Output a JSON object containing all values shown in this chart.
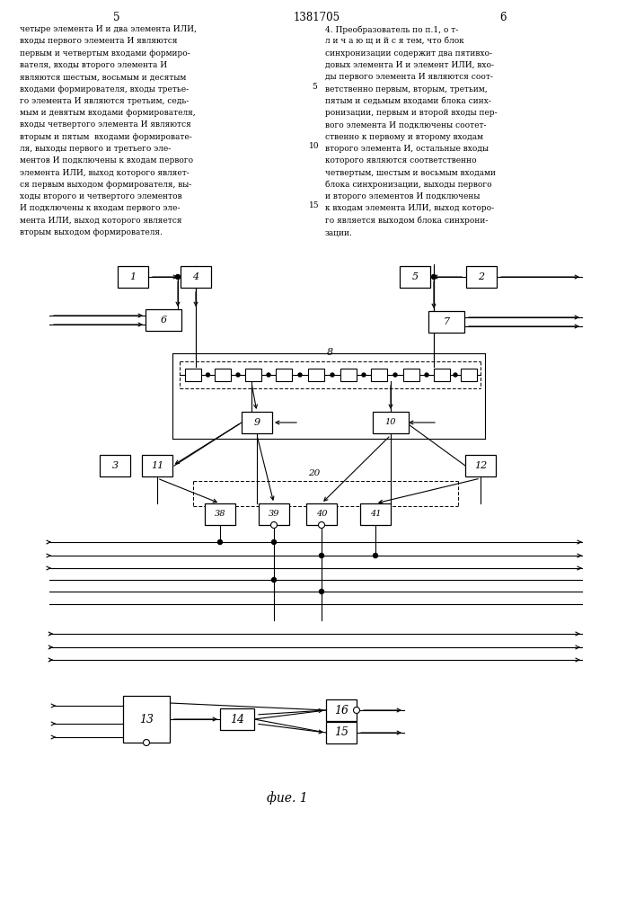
{
  "title": "1381705",
  "page_left": "5",
  "page_right": "6",
  "fig_label": "фие. 1",
  "text_left_lines": [
    "четыре элемента И и два элемента ИЛИ,",
    "входы первого элемента И являются",
    "первым и четвертым входами формиро-",
    "вателя, входы второго элемента И",
    "являются шестым, восьмым и десятым",
    "входами формирователя, входы третье-",
    "го элемента И являются третьим, седь-",
    "мым и девятым входами формирователя,",
    "входы четвертого элемента И являются",
    "вторым и пятым  входами формировате-",
    "ля, выходы первого и третьего эле-",
    "ментов И подключены к входам первого",
    "элемента ИЛИ, выход которого являет-",
    "ся первым выходом формирователя, вы-",
    "ходы второго и четвертого элементов",
    "И подключены к входам первого эле-",
    "мента ИЛИ, выход которого является",
    "вторым выходом формирователя."
  ],
  "text_right_lines": [
    "4. Преобразователь по п.1, о т-",
    "л и ч а ю щ и й с я тем, что блок",
    "синхронизации содержит два пятивхо-",
    "довых элемента И и элемент ИЛИ, вхо-",
    "ды первого элемента И являются соот-",
    "ветственно первым, вторым, третьим,",
    "пятым и седьмым входами блока синх-",
    "ронизации, первым и второй входы пер-",
    "вого элемента И подключены соотет-",
    "ственно к первому и второму входам",
    "второго элемента И, остальные входы",
    "которого являются соответственно",
    "четвертым, шестым и восьмым входами",
    "блока синхронизации, выходы первого",
    "и второго элементов И подключены",
    "к входам элемента ИЛИ, выход которо-",
    "го является выходом блока синхрони-",
    "зации."
  ],
  "background": "#ffffff",
  "lc": "#000000",
  "tc": "#000000"
}
